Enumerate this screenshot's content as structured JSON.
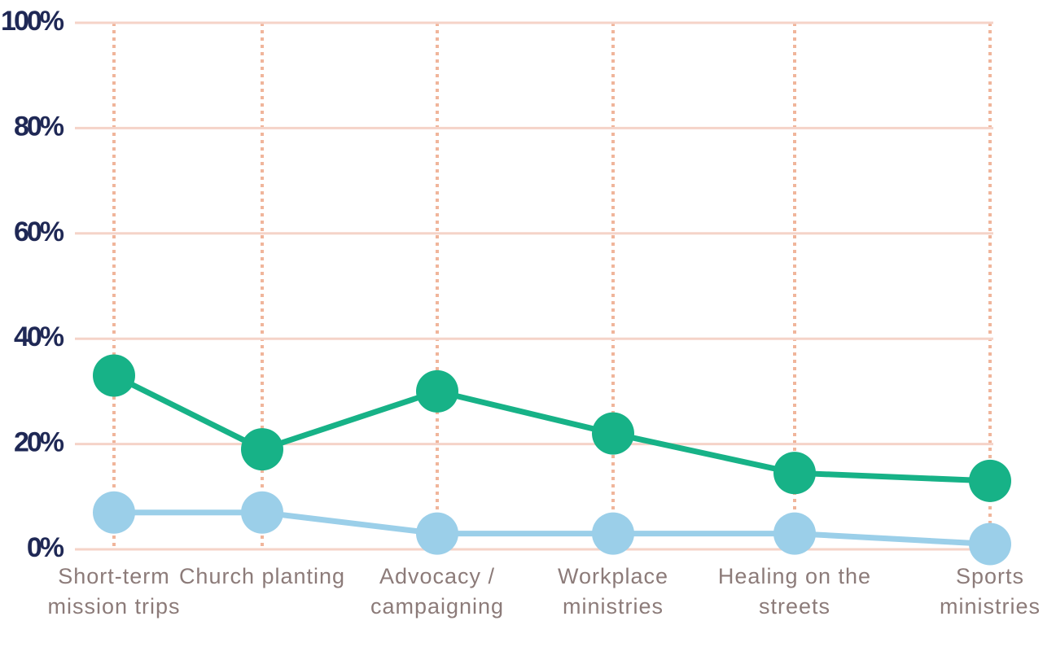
{
  "chart_data": {
    "type": "line",
    "categories": [
      "Short-term mission trips",
      "Church planting",
      "Advocacy / campaigning",
      "Workplace ministries",
      "Healing on the streets",
      "Sports ministries"
    ],
    "series": [
      {
        "color": "#17b287",
        "values": [
          33,
          19,
          30,
          22,
          14.5,
          13
        ]
      },
      {
        "color": "#9bcfe9",
        "values": [
          7,
          7,
          3,
          3,
          3,
          1
        ]
      }
    ],
    "ylim": [
      0,
      100
    ],
    "yticks": [
      {
        "value": 0,
        "label": "0%"
      },
      {
        "value": 20,
        "label": "20%"
      },
      {
        "value": 40,
        "label": "40%"
      },
      {
        "value": 60,
        "label": "60%"
      },
      {
        "value": 80,
        "label": "80%"
      },
      {
        "value": 100,
        "label": "100%"
      }
    ],
    "grid": true
  }
}
